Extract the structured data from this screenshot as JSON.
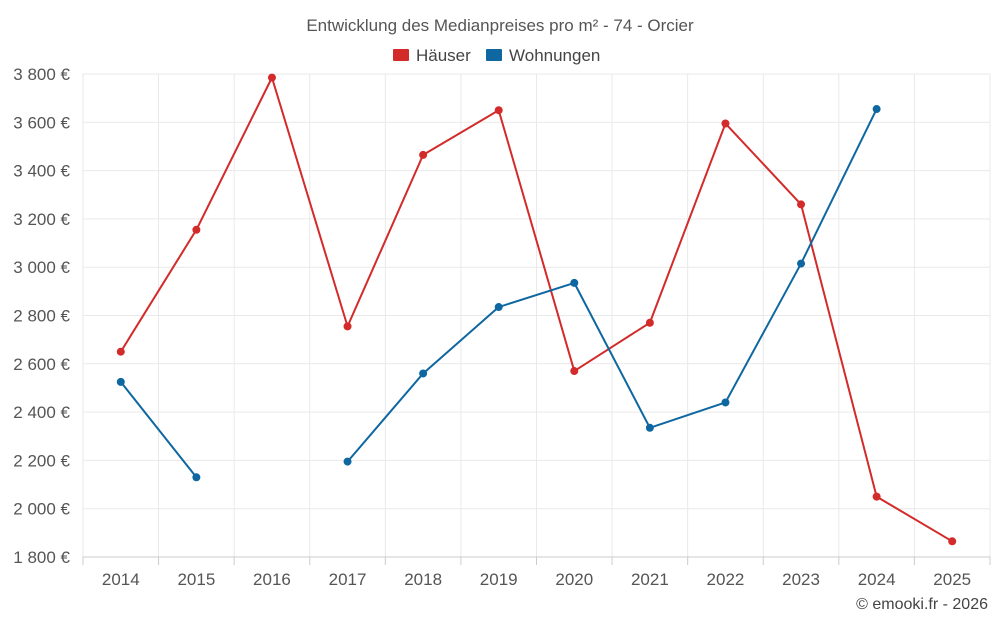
{
  "chart_data": {
    "type": "line",
    "title": "Entwicklung des Medianpreises pro m² - 74 - Orcier",
    "categories": [
      "2014",
      "2015",
      "2016",
      "2017",
      "2018",
      "2019",
      "2020",
      "2021",
      "2022",
      "2023",
      "2024",
      "2025"
    ],
    "series": [
      {
        "name": "Häuser",
        "color": "#d32a2a",
        "values": [
          2650,
          3155,
          3785,
          2755,
          3465,
          3650,
          2570,
          2770,
          3595,
          3260,
          2050,
          1865
        ]
      },
      {
        "name": "Wohnungen",
        "color": "#0e67a0",
        "values": [
          2525,
          2130,
          null,
          2195,
          2560,
          2835,
          2935,
          2335,
          2440,
          3015,
          3655,
          null
        ]
      }
    ],
    "ylim": [
      1800,
      3800
    ],
    "yticks": [
      1800,
      2000,
      2200,
      2400,
      2600,
      2800,
      3000,
      3200,
      3400,
      3600,
      3800
    ],
    "ytick_labels": [
      "1 800 €",
      "2 000 €",
      "2 200 €",
      "2 400 €",
      "2 600 €",
      "2 800 €",
      "3 000 €",
      "3 200 €",
      "3 400 €",
      "3 600 €",
      "3 800 €"
    ],
    "xlabel": "",
    "ylabel": "",
    "grid": true,
    "legend_position": "top-center"
  },
  "credit": "© emooki.fr - 2026"
}
